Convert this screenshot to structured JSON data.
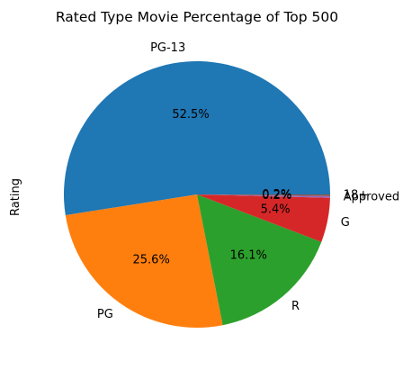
{
  "chart_data": {
    "type": "pie",
    "title": "Rated Type Movie Percentage of Top 500",
    "ylabel": "Rating",
    "slices": [
      {
        "label": "PG-13",
        "value": 52.5,
        "pct_label": "52.5%",
        "color": "#1f77b4"
      },
      {
        "label": "PG",
        "value": 25.6,
        "pct_label": "25.6%",
        "color": "#ff7f0e"
      },
      {
        "label": "R",
        "value": 16.1,
        "pct_label": "16.1%",
        "color": "#2ca02c"
      },
      {
        "label": "G",
        "value": 5.4,
        "pct_label": "5.4%",
        "color": "#d62728"
      },
      {
        "label": "Approved",
        "value": 0.2,
        "pct_label": "0.2%",
        "color": "#9467bd"
      },
      {
        "label": "18+",
        "value": 0.2,
        "pct_label": "0.2%",
        "color": "#8c564b"
      }
    ]
  }
}
